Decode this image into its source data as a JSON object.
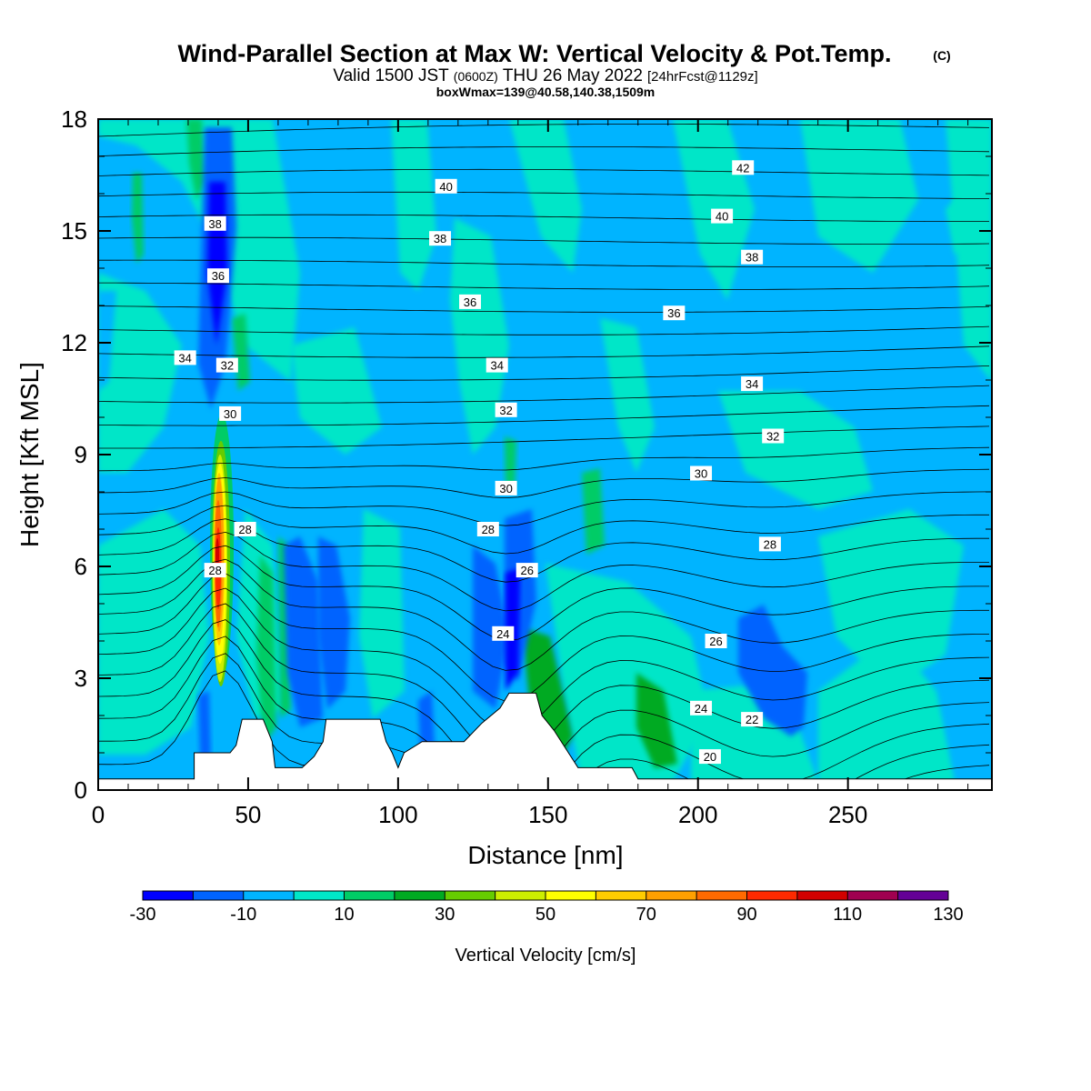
{
  "title": {
    "main": "Wind-Parallel Section at Max W: Vertical Velocity & Pot.Temp.",
    "copyright": "(C)",
    "valid_prefix": "Valid 1500 JST",
    "valid_utc": "(0600Z)",
    "valid_date": "THU 26 May 2022",
    "forecast": "[24hrFcst@1129z]",
    "box": "boxWmax=139@40.58,140.38,1509m"
  },
  "chart_data": {
    "type": "heatmap",
    "xlabel": "Distance [nm]",
    "ylabel": "Height [Kft MSL]",
    "xlim": [
      0,
      298
    ],
    "ylim": [
      0,
      18
    ],
    "x_ticks": [
      0,
      50,
      100,
      150,
      200,
      250
    ],
    "y_ticks": [
      0,
      3,
      6,
      9,
      12,
      15,
      18
    ],
    "background_color": "#00b4ff",
    "colorbar": {
      "label": "Vertical Velocity [cm/s]",
      "levels": [
        -30,
        -20,
        -10,
        0,
        10,
        20,
        30,
        40,
        50,
        60,
        70,
        80,
        90,
        100,
        110,
        120,
        130
      ],
      "tick_labels": [
        "-30",
        "-10",
        "10",
        "30",
        "50",
        "70",
        "90",
        "110",
        "130"
      ],
      "tick_values": [
        -30,
        -10,
        10,
        30,
        50,
        70,
        90,
        110,
        130
      ],
      "colors": [
        "#0000ff",
        "#0064ff",
        "#00b4ff",
        "#00e6c8",
        "#00cc66",
        "#00aa22",
        "#66cc00",
        "#ccee00",
        "#ffff00",
        "#ffcc00",
        "#ffa000",
        "#ff6a00",
        "#ff2a00",
        "#d20000",
        "#a00050",
        "#640096"
      ]
    },
    "w_features": [
      {
        "name": "updraft core",
        "x": [
          38,
          44
        ],
        "y": [
          1.0,
          10.5
        ],
        "w_max": 139
      },
      {
        "name": "downdraft",
        "x": [
          34,
          44
        ],
        "y": [
          10.5,
          17.5
        ],
        "w_min": -30
      },
      {
        "name": "downdraft",
        "x": [
          63,
          82
        ],
        "y": [
          1.5,
          6.8
        ],
        "w_min": -20
      },
      {
        "name": "downdraft",
        "x": [
          124,
          146
        ],
        "y": [
          2.4,
          7.0
        ],
        "w_min": -30
      },
      {
        "name": "downdraft",
        "x": [
          211,
          238
        ],
        "y": [
          1.5,
          4.9
        ],
        "w_min": -20
      },
      {
        "name": "updraft",
        "x": [
          55,
          60
        ],
        "y": [
          1.0,
          6.0
        ],
        "w_max": 30
      },
      {
        "name": "updraft",
        "x": [
          145,
          160
        ],
        "y": [
          0.8,
          3.6
        ],
        "w_max": 30
      },
      {
        "name": "updraft",
        "x": [
          179,
          190
        ],
        "y": [
          0.8,
          3.2
        ],
        "w_max": 30
      }
    ],
    "theta_contours": {
      "units": "C",
      "labels": [
        {
          "text": "42",
          "x": 215,
          "y": 16.7
        },
        {
          "text": "40",
          "x": 116,
          "y": 16.2
        },
        {
          "text": "40",
          "x": 208,
          "y": 15.4
        },
        {
          "text": "38",
          "x": 39,
          "y": 15.2
        },
        {
          "text": "38",
          "x": 114,
          "y": 14.8
        },
        {
          "text": "38",
          "x": 218,
          "y": 14.3
        },
        {
          "text": "36",
          "x": 40,
          "y": 13.8
        },
        {
          "text": "36",
          "x": 124,
          "y": 13.1
        },
        {
          "text": "36",
          "x": 192,
          "y": 12.8
        },
        {
          "text": "34",
          "x": 29,
          "y": 11.6
        },
        {
          "text": "34",
          "x": 133,
          "y": 11.4
        },
        {
          "text": "34",
          "x": 218,
          "y": 10.9
        },
        {
          "text": "32",
          "x": 43,
          "y": 11.4
        },
        {
          "text": "32",
          "x": 136,
          "y": 10.2
        },
        {
          "text": "32",
          "x": 225,
          "y": 9.5
        },
        {
          "text": "30",
          "x": 44,
          "y": 10.1
        },
        {
          "text": "30",
          "x": 136,
          "y": 8.1
        },
        {
          "text": "30",
          "x": 201,
          "y": 8.5
        },
        {
          "text": "28",
          "x": 49,
          "y": 7.0
        },
        {
          "text": "28",
          "x": 39,
          "y": 5.9
        },
        {
          "text": "28",
          "x": 130,
          "y": 7.0
        },
        {
          "text": "28",
          "x": 224,
          "y": 6.6
        },
        {
          "text": "26",
          "x": 143,
          "y": 5.9
        },
        {
          "text": "26",
          "x": 206,
          "y": 4.0
        },
        {
          "text": "24",
          "x": 135,
          "y": 4.2
        },
        {
          "text": "24",
          "x": 201,
          "y": 2.2
        },
        {
          "text": "22",
          "x": 218,
          "y": 1.9
        },
        {
          "text": "20",
          "x": 204,
          "y": 0.9
        }
      ]
    },
    "terrain_profile": [
      [
        0,
        0.3
      ],
      [
        32,
        0.3
      ],
      [
        32,
        1.0
      ],
      [
        44,
        1.0
      ],
      [
        46,
        1.2
      ],
      [
        48,
        1.9
      ],
      [
        55,
        1.9
      ],
      [
        58,
        1.3
      ],
      [
        59,
        0.6
      ],
      [
        68,
        0.6
      ],
      [
        72,
        0.9
      ],
      [
        75,
        1.3
      ],
      [
        76,
        1.9
      ],
      [
        94,
        1.9
      ],
      [
        96,
        1.3
      ],
      [
        98,
        1.0
      ],
      [
        100,
        0.6
      ],
      [
        102,
        1.0
      ],
      [
        108,
        1.3
      ],
      [
        122,
        1.3
      ],
      [
        128,
        1.8
      ],
      [
        134,
        2.2
      ],
      [
        137,
        2.6
      ],
      [
        146,
        2.6
      ],
      [
        148,
        2.0
      ],
      [
        152,
        1.6
      ],
      [
        156,
        1.1
      ],
      [
        160,
        0.6
      ],
      [
        178,
        0.6
      ],
      [
        180,
        0.3
      ],
      [
        298,
        0.3
      ]
    ]
  }
}
